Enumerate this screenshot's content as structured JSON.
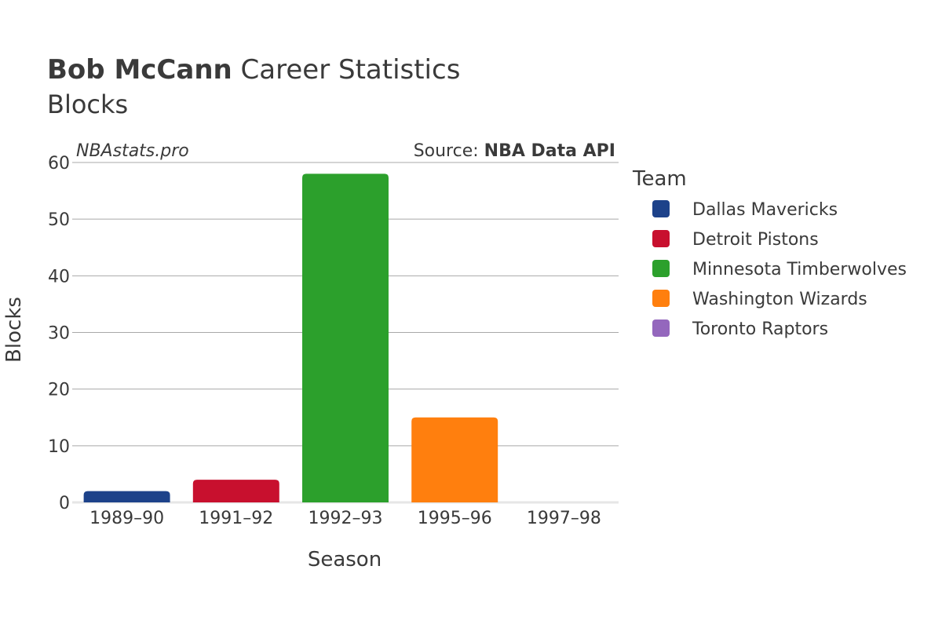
{
  "title": {
    "bold": "Bob McCann",
    "rest": " Career Statistics"
  },
  "subtitle": "Blocks",
  "watermark": "NBAstats.pro",
  "source": {
    "prefix": "Source: ",
    "name": "NBA Data API"
  },
  "chart_data": {
    "type": "bar",
    "title": "Bob McCann Career Statistics",
    "subtitle": "Blocks",
    "xlabel": "Season",
    "ylabel": "Blocks",
    "ylim": [
      0,
      60
    ],
    "yticks": [
      0,
      10,
      20,
      30,
      40,
      50,
      60
    ],
    "categories": [
      "1989–90",
      "1991–92",
      "1992–93",
      "1995–96",
      "1997–98"
    ],
    "values": [
      2,
      4,
      58,
      15,
      0
    ],
    "bar_teams": [
      "Dallas Mavericks",
      "Detroit Pistons",
      "Minnesota Timberwolves",
      "Washington Wizards",
      "Toronto Raptors"
    ],
    "grid": true,
    "legend": {
      "title": "Team",
      "position": "right",
      "entries": [
        {
          "name": "Dallas Mavericks",
          "color": "#1d428a"
        },
        {
          "name": "Detroit Pistons",
          "color": "#c8102e"
        },
        {
          "name": "Minnesota Timberwolves",
          "color": "#2ca02c"
        },
        {
          "name": "Washington Wizards",
          "color": "#ff7f0e"
        },
        {
          "name": "Toronto Raptors",
          "color": "#9467bd"
        }
      ]
    }
  }
}
